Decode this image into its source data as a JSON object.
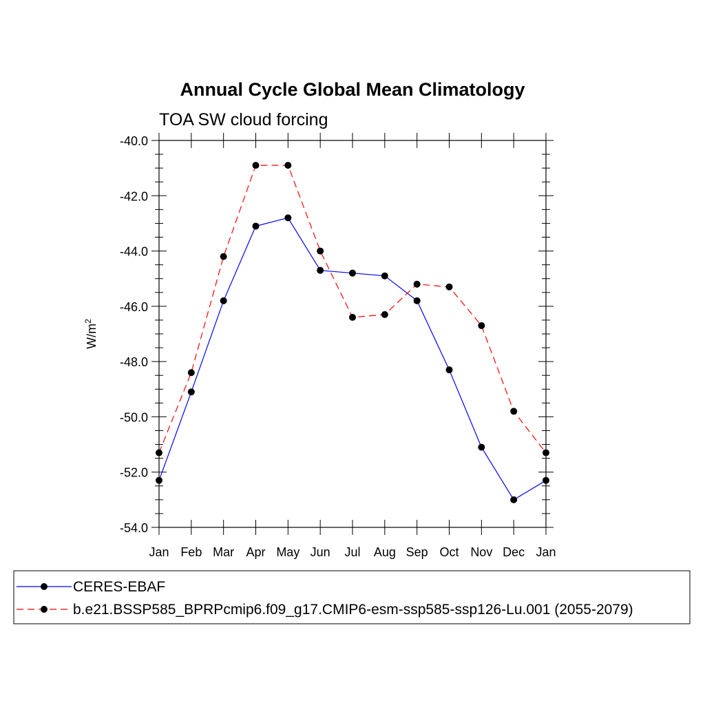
{
  "chart_data": {
    "type": "line",
    "title": "Annual Cycle Global Mean Climatology",
    "subtitle": "TOA SW cloud forcing",
    "ylabel": "W/m",
    "ylabel_superscript": "2",
    "xlabel": "",
    "categories": [
      "Jan",
      "Feb",
      "Mar",
      "Apr",
      "May",
      "Jun",
      "Jul",
      "Aug",
      "Sep",
      "Oct",
      "Nov",
      "Dec",
      "Jan"
    ],
    "ylim": [
      -54.0,
      -40.0
    ],
    "y_ticks": [
      "-40.0",
      "-42.0",
      "-44.0",
      "-46.0",
      "-48.0",
      "-50.0",
      "-52.0",
      "-54.0"
    ],
    "y_tick_values": [
      -40,
      -42,
      -44,
      -46,
      -48,
      -50,
      -52,
      -54
    ],
    "grid": false,
    "legend_position": "bottom",
    "series": [
      {
        "name": "CERES-EBAF",
        "color": "#0000ff",
        "dash": "solid",
        "marker": "filled-circle",
        "values": [
          -52.3,
          -49.1,
          -45.8,
          -43.1,
          -42.8,
          -44.7,
          -44.8,
          -44.9,
          -45.8,
          -48.3,
          -51.1,
          -53.0,
          -52.3
        ]
      },
      {
        "name": "b.e21.BSSP585_BPRPcmip6.f09_g17.CMIP6-esm-ssp585-ssp126-Lu.001 (2055-2079)",
        "color": "#ff0000",
        "dash": "dashed",
        "marker": "filled-circle",
        "values": [
          -51.3,
          -48.4,
          -44.2,
          -40.9,
          -40.9,
          -44.0,
          -46.4,
          -46.3,
          -45.2,
          -45.3,
          -46.7,
          -49.8,
          -51.3
        ]
      }
    ],
    "marker_color": "#000000"
  }
}
